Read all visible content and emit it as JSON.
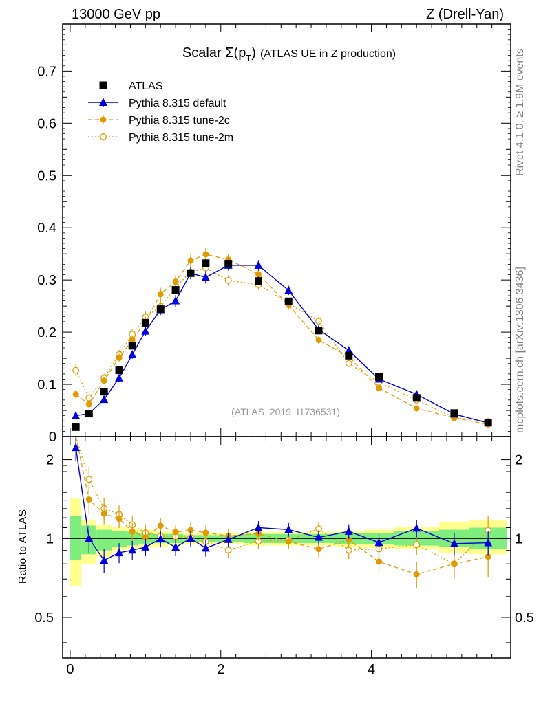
{
  "header": {
    "energy": "13000 GeV pp",
    "process": "Z (Drell-Yan)"
  },
  "side": {
    "rivet": "Rivet 4.1.0, ≥ 1.9M events",
    "mcplots": "mcplots.cern.ch [arXiv:1306.3436]"
  },
  "colors": {
    "data": "#000000",
    "default": "#0000dd",
    "tune2c": "#e09b00",
    "tune2m": "#e09b00",
    "band_green": "#7fee7f",
    "band_yellow": "#ffff90"
  },
  "chart_data": {
    "type": "line",
    "title": "Scalar Σ(p_T) (ATLAS UE in Z production)",
    "title_main": "Scalar Σ(p",
    "title_sub": "T",
    "title_close": ")",
    "title_rest": "(ATLAS UE in Z production)",
    "watermark": "(ATLAS_2019_I1736531)",
    "xlim": [
      -0.1,
      5.85
    ],
    "ylim": [
      0,
      0.79
    ],
    "ratio_ylim": [
      0.35,
      2.45
    ],
    "ratio_ylabel": "Ratio to ATLAS",
    "xticks": [
      0,
      2,
      4
    ],
    "xtick_labels": [
      "0",
      "2",
      "4"
    ],
    "yticks": [
      0,
      0.1,
      0.2,
      0.3,
      0.4,
      0.5,
      0.6,
      0.7
    ],
    "ytick_labels": [
      "0",
      "0.1",
      "0.2",
      "0.3",
      "0.4",
      "0.5",
      "0.6",
      "0.7"
    ],
    "ratio_yticks": [
      0.5,
      1,
      2
    ],
    "ratio_ytick_labels": [
      "0.5",
      "1",
      "2"
    ],
    "legend": {
      "position": "top-left",
      "entries": [
        "ATLAS",
        "Pythia 8.315 default",
        "Pythia 8.315 tune-2c",
        "Pythia 8.315 tune-2m"
      ]
    },
    "x": [
      0.075,
      0.25,
      0.45,
      0.65,
      0.825,
      1.0,
      1.2,
      1.4,
      1.6,
      1.8,
      2.1,
      2.5,
      2.9,
      3.3,
      3.7,
      4.1,
      4.6,
      5.1,
      5.55
    ],
    "bins": [
      [
        0,
        0.15
      ],
      [
        0.15,
        0.35
      ],
      [
        0.35,
        0.55
      ],
      [
        0.55,
        0.75
      ],
      [
        0.75,
        0.9
      ],
      [
        0.9,
        1.1
      ],
      [
        1.1,
        1.3
      ],
      [
        1.3,
        1.5
      ],
      [
        1.5,
        1.7
      ],
      [
        1.7,
        1.9
      ],
      [
        1.9,
        2.3
      ],
      [
        2.3,
        2.7
      ],
      [
        2.7,
        3.1
      ],
      [
        3.1,
        3.5
      ],
      [
        3.5,
        3.9
      ],
      [
        3.9,
        4.3
      ],
      [
        4.3,
        4.9
      ],
      [
        4.9,
        5.3
      ],
      [
        5.3,
        5.8
      ]
    ],
    "series": [
      {
        "name": "ATLAS",
        "values": [
          0.018,
          0.044,
          0.086,
          0.127,
          0.174,
          0.218,
          0.244,
          0.281,
          0.313,
          0.332,
          0.331,
          0.298,
          0.259,
          0.203,
          0.155,
          0.114,
          0.074,
          0.045,
          0.027
        ],
        "errors": [
          0.002,
          0.004,
          0.004,
          0.005,
          0.006,
          0.007,
          0.007,
          0.008,
          0.008,
          0.008,
          0.008,
          0.008,
          0.007,
          0.006,
          0.005,
          0.004,
          0.003,
          0.002,
          0.002
        ]
      },
      {
        "name": "Pythia 8.315 default",
        "values": [
          0.04,
          0.044,
          0.071,
          0.112,
          0.157,
          0.202,
          0.243,
          0.26,
          0.313,
          0.305,
          0.328,
          0.328,
          0.28,
          0.205,
          0.165,
          0.11,
          0.081,
          0.043,
          0.026
        ],
        "errors": [
          0.004,
          0.004,
          0.005,
          0.006,
          0.008,
          0.009,
          0.01,
          0.011,
          0.012,
          0.012,
          0.01,
          0.01,
          0.009,
          0.007,
          0.006,
          0.005,
          0.004,
          0.003,
          0.002
        ]
      },
      {
        "name": "Pythia 8.315 tune-2c",
        "values": [
          0.081,
          0.062,
          0.107,
          0.151,
          0.185,
          0.22,
          0.273,
          0.297,
          0.337,
          0.349,
          0.339,
          0.311,
          0.252,
          0.185,
          0.153,
          0.093,
          0.054,
          0.036,
          0.023
        ],
        "errors": [
          0.008,
          0.006,
          0.007,
          0.008,
          0.009,
          0.01,
          0.012,
          0.012,
          0.013,
          0.013,
          0.011,
          0.01,
          0.009,
          0.007,
          0.006,
          0.005,
          0.004,
          0.003,
          0.003
        ]
      },
      {
        "name": "Pythia 8.315 tune-2m",
        "values": [
          0.127,
          0.074,
          0.112,
          0.157,
          0.196,
          0.229,
          0.249,
          0.286,
          0.315,
          0.323,
          0.299,
          0.291,
          0.255,
          0.221,
          0.14,
          0.104,
          0.07,
          0.036,
          0.029
        ],
        "errors": [
          0.011,
          0.007,
          0.008,
          0.009,
          0.01,
          0.011,
          0.012,
          0.012,
          0.013,
          0.013,
          0.01,
          0.01,
          0.009,
          0.008,
          0.006,
          0.005,
          0.004,
          0.003,
          0.003
        ]
      }
    ],
    "ratio_bands": {
      "green": [
        [
          0.83,
          1.22
        ],
        [
          0.87,
          1.12
        ],
        [
          0.9,
          1.08
        ],
        [
          0.93,
          1.07
        ],
        [
          0.94,
          1.06
        ],
        [
          0.95,
          1.05
        ],
        [
          0.96,
          1.04
        ],
        [
          0.96,
          1.04
        ],
        [
          0.97,
          1.03
        ],
        [
          0.97,
          1.03
        ],
        [
          0.97,
          1.03
        ],
        [
          0.96,
          1.04
        ],
        [
          0.96,
          1.04
        ],
        [
          0.96,
          1.04
        ],
        [
          0.95,
          1.05
        ],
        [
          0.95,
          1.05
        ],
        [
          0.94,
          1.07
        ],
        [
          0.93,
          1.08
        ],
        [
          0.91,
          1.1
        ]
      ],
      "yellow": [
        [
          0.66,
          1.42
        ],
        [
          0.8,
          1.18
        ],
        [
          0.85,
          1.13
        ],
        [
          0.89,
          1.11
        ],
        [
          0.91,
          1.09
        ],
        [
          0.92,
          1.08
        ],
        [
          0.93,
          1.07
        ],
        [
          0.94,
          1.06
        ],
        [
          0.95,
          1.05
        ],
        [
          0.95,
          1.05
        ],
        [
          0.95,
          1.05
        ],
        [
          0.94,
          1.06
        ],
        [
          0.94,
          1.06
        ],
        [
          0.94,
          1.06
        ],
        [
          0.93,
          1.07
        ],
        [
          0.92,
          1.08
        ],
        [
          0.91,
          1.11
        ],
        [
          0.88,
          1.16
        ],
        [
          0.87,
          1.18
        ]
      ]
    }
  }
}
